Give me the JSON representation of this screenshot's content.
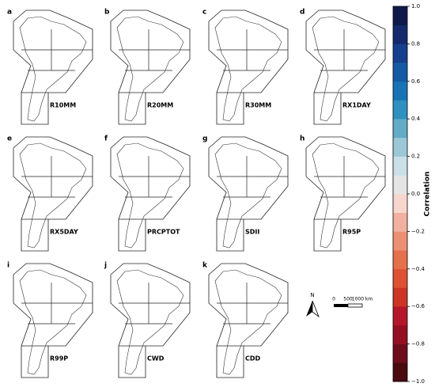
{
  "panels": [
    {
      "letter": "a",
      "label": "R10MM"
    },
    {
      "letter": "b",
      "label": "R20MM"
    },
    {
      "letter": "c",
      "label": "R30MM"
    },
    {
      "letter": "d",
      "label": "RX1DAY"
    },
    {
      "letter": "e",
      "label": "RX5DAY"
    },
    {
      "letter": "f",
      "label": "PRCPTOT"
    },
    {
      "letter": "g",
      "label": "SDII"
    },
    {
      "letter": "h",
      "label": "R95P"
    },
    {
      "letter": "i",
      "label": "R99P"
    },
    {
      "letter": "j",
      "label": "CWD"
    },
    {
      "letter": "k",
      "label": "CDD"
    }
  ],
  "colorbar": {
    "label": "Correlation",
    "lim": [
      -1,
      1
    ],
    "ticks": [
      {
        "value": -1,
        "label": "−1.0"
      },
      {
        "value": -0.8,
        "label": "−0.8"
      },
      {
        "value": -0.6,
        "label": "−0.6"
      },
      {
        "value": -0.4,
        "label": "−0.4"
      },
      {
        "value": -0.2,
        "label": "−0.2"
      },
      {
        "value": 0,
        "label": "0.0"
      },
      {
        "value": 0.2,
        "label": "0.2"
      },
      {
        "value": 0.4,
        "label": "0.4"
      },
      {
        "value": 0.6,
        "label": "0.6"
      },
      {
        "value": 0.8,
        "label": "0.8"
      },
      {
        "value": 1,
        "label": "1.0"
      }
    ],
    "colors": [
      "#4a0a0f",
      "#6e0d1a",
      "#950f22",
      "#b5172a",
      "#cc3526",
      "#dc5232",
      "#e5704c",
      "#ec8f73",
      "#f2b1a0",
      "#f6d6cd",
      "#e4e4e4",
      "#cadfe6",
      "#9cc7d6",
      "#63abc7",
      "#2e90bf",
      "#1a73b5",
      "#165aa5",
      "#163f8c",
      "#142a6c",
      "#0f1a4a"
    ]
  },
  "scale": {
    "north": "N",
    "ticks": [
      "0",
      "500",
      "1000 km"
    ]
  }
}
